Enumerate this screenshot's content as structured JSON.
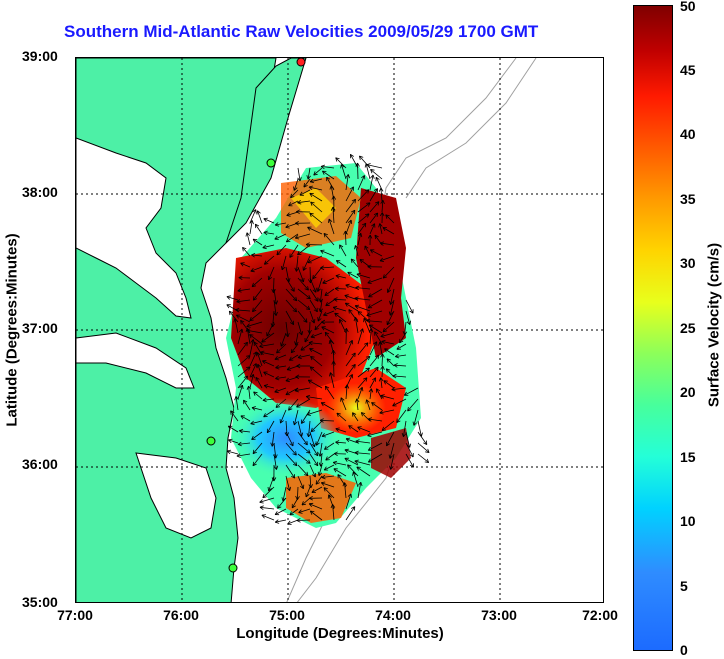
{
  "title": "Southern Mid-Atlantic Raw Velocities 2009/05/29 1700 GMT",
  "xlabel": "Longitude (Degrees:Minutes)",
  "ylabel": "Latitude (Degrees:Minutes)",
  "x_ticks": [
    "77:00",
    "76:00",
    "75:00",
    "74:00",
    "73:00",
    "72:00"
  ],
  "y_ticks": [
    "39:00",
    "38:00",
    "37:00",
    "36:00",
    "35:00"
  ],
  "colorbar": {
    "label": "Surface Velocity (cm/s)",
    "ticks": [
      "50",
      "45",
      "40",
      "35",
      "30",
      "25",
      "20",
      "15",
      "10",
      "5",
      "0"
    ],
    "range": [
      0,
      50
    ]
  },
  "colors": {
    "title": "#1a1aff",
    "land": "#4df0a6",
    "coastline": "#000000",
    "bathymetry": "#a0a0a0",
    "station_markers": "#3cff3c",
    "station_marker_red": "#ff2020"
  },
  "axis_ranges": {
    "longitude": [
      -77,
      -72
    ],
    "latitude": [
      35,
      39
    ]
  },
  "grid": "dotted"
}
